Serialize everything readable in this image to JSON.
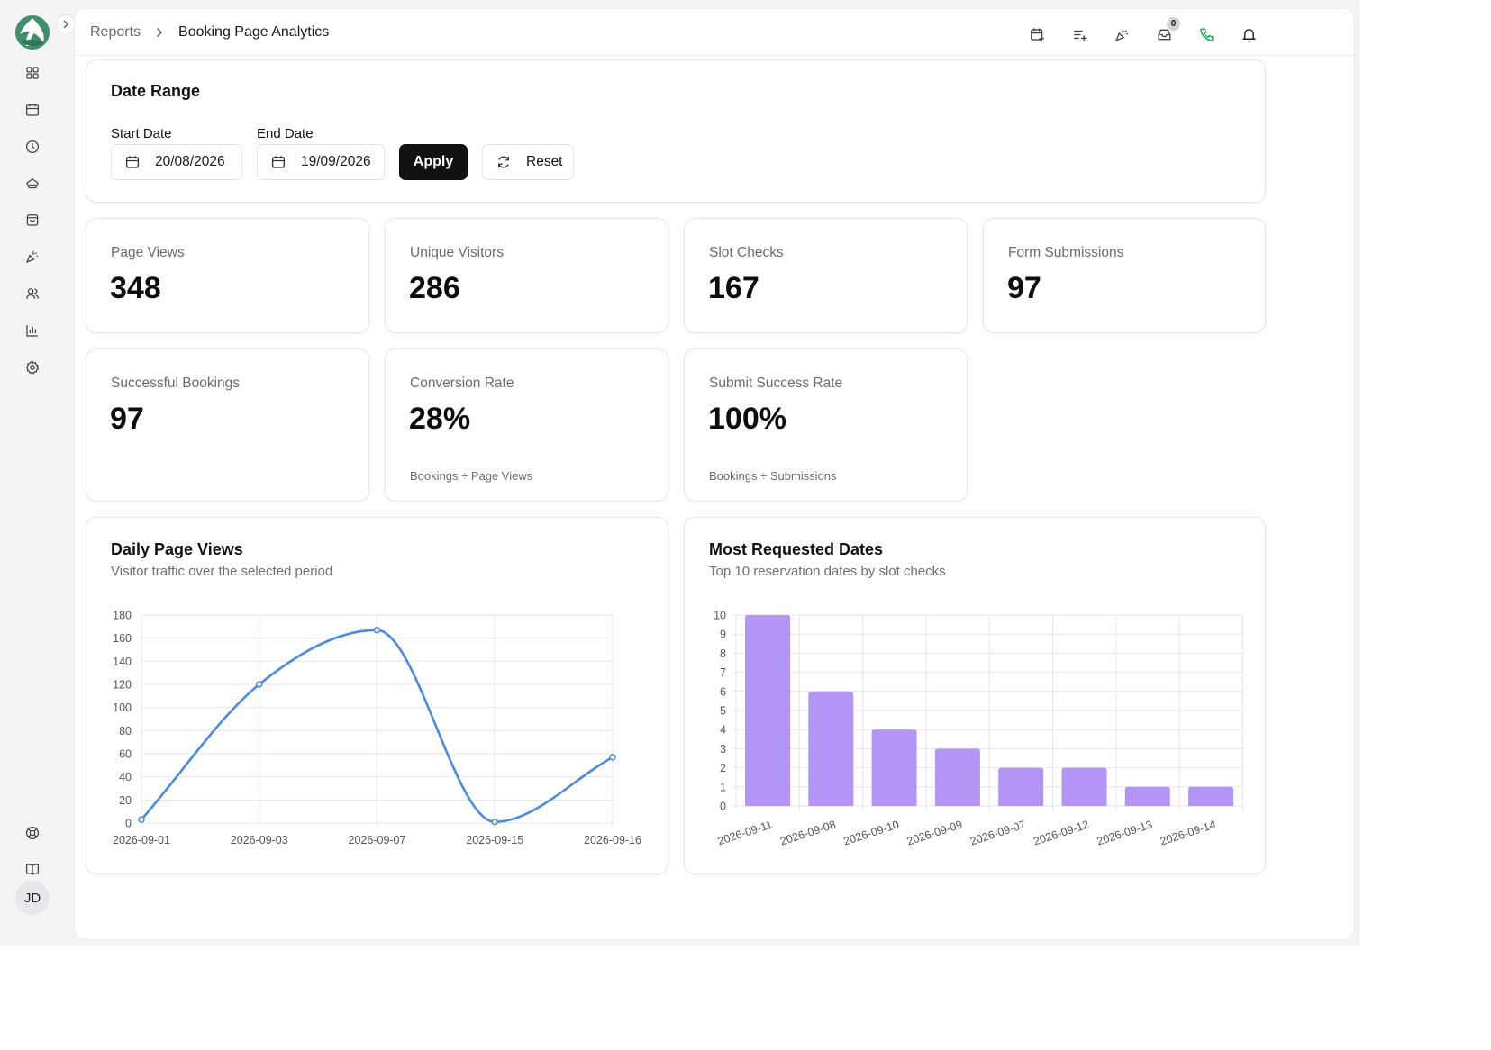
{
  "breadcrumb": {
    "parent": "Reports",
    "current": "Booking Page Analytics"
  },
  "notifications": {
    "inbox_count": "0"
  },
  "sidebar": {
    "avatar_initials": "JD",
    "icons": [
      "grid-icon",
      "calendar-icon",
      "clock-icon",
      "services-icon",
      "bag-icon",
      "megaphone-icon",
      "users-icon",
      "reports-icon",
      "settings-icon",
      "help-icon",
      "book-icon"
    ]
  },
  "date_range": {
    "title": "Date Range",
    "start_label": "Start Date",
    "start_value": "20/08/2026",
    "end_label": "End Date",
    "end_value": "19/09/2026",
    "apply_label": "Apply",
    "reset_label": "Reset"
  },
  "stats": [
    {
      "label": "Page Views",
      "value": "348"
    },
    {
      "label": "Unique Visitors",
      "value": "286"
    },
    {
      "label": "Slot Checks",
      "value": "167"
    },
    {
      "label": "Form Submissions",
      "value": "97"
    },
    {
      "label": "Successful Bookings",
      "value": "97"
    },
    {
      "label": "Conversion Rate",
      "value": "28%",
      "note": "Bookings ÷ Page Views"
    },
    {
      "label": "Submit Success Rate",
      "value": "100%",
      "note": "Bookings ÷ Submissions"
    }
  ],
  "colors": {
    "line": "#4a8ae2",
    "bar": "#b395f6",
    "accent_green": "#16a34a"
  },
  "chart_data": [
    {
      "type": "line",
      "title": "Daily Page Views",
      "subtitle": "Visitor traffic over the selected period",
      "categories": [
        "2026-09-01",
        "2026-09-03",
        "2026-09-07",
        "2026-09-15",
        "2026-09-16"
      ],
      "values": [
        3,
        120,
        167,
        1,
        57
      ],
      "ylim": [
        0,
        180
      ],
      "yticks": [
        0,
        20,
        40,
        60,
        80,
        100,
        120,
        140,
        160,
        180
      ],
      "grid": true,
      "legend": "none"
    },
    {
      "type": "bar",
      "title": "Most Requested Dates",
      "subtitle": "Top 10 reservation dates by slot checks",
      "categories": [
        "2026-09-11",
        "2026-09-08",
        "2026-09-10",
        "2026-09-09",
        "2026-09-07",
        "2026-09-12",
        "2026-09-13",
        "2026-09-14"
      ],
      "values": [
        10,
        6,
        4,
        3,
        2,
        2,
        1,
        1
      ],
      "ylim": [
        0,
        10
      ],
      "yticks": [
        0,
        1,
        2,
        3,
        4,
        5,
        6,
        7,
        8,
        9,
        10
      ],
      "grid": true,
      "legend": "none"
    }
  ]
}
